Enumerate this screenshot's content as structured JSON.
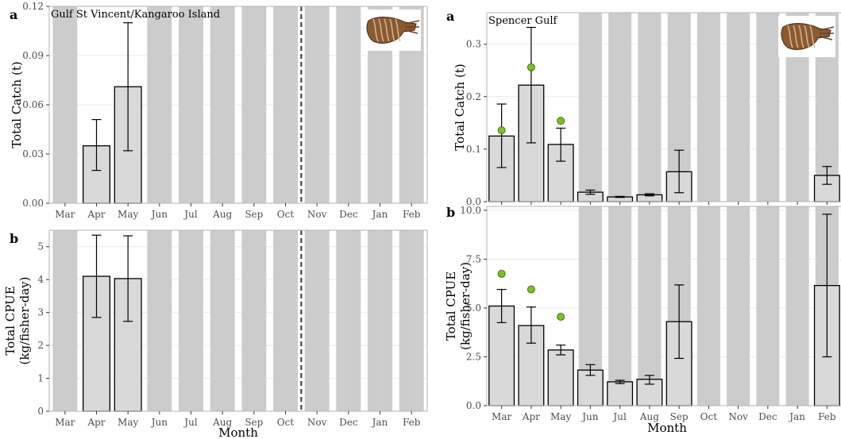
{
  "figure": {
    "xlabel": "Month",
    "months": [
      "Mar",
      "Apr",
      "May",
      "Jun",
      "Jul",
      "Aug",
      "Sep",
      "Oct",
      "Nov",
      "Dec",
      "Jan",
      "Feb"
    ]
  },
  "colors": {
    "panel_bg": "#ffffff",
    "closure_band": "#cccccc",
    "bar_fill": "#d9d9d9",
    "bar_stroke": "#000000",
    "point": "#7cc21f",
    "axis_text": "#4d4d4d",
    "grid": "#ebebeb",
    "separator": "#333333"
  },
  "chart_data": [
    {
      "id": "gsv-catch",
      "type": "bar",
      "panel_tag": "a",
      "title": "Gulf St Vincent/Kangaroo Island",
      "ylabel": [
        "Total Catch (t)"
      ],
      "ylim": [
        0,
        0.12
      ],
      "yticks": [
        0,
        0.03,
        0.06,
        0.09,
        0.12
      ],
      "ytick_labels": [
        "0.00",
        "0.03",
        "0.06",
        "0.09",
        "0.12"
      ],
      "closed_months": [
        "Mar",
        "Jun",
        "Jul",
        "Aug",
        "Sep",
        "Oct",
        "Nov",
        "Dec",
        "Jan",
        "Feb"
      ],
      "separator_after": "Oct",
      "bars": [
        {
          "month": "Apr",
          "value": 0.035,
          "low": 0.02,
          "high": 0.051
        },
        {
          "month": "May",
          "value": 0.071,
          "low": 0.032,
          "high": 0.11
        }
      ],
      "points": [],
      "image_icon": "cuttlefish-icon"
    },
    {
      "id": "gsv-cpue",
      "type": "bar",
      "panel_tag": "b",
      "ylabel": [
        "Total CPUE",
        "(kg/fisher-day)"
      ],
      "ylim": [
        0,
        5.5
      ],
      "yticks": [
        0,
        1,
        2,
        3,
        4,
        5
      ],
      "ytick_labels": [
        "0",
        "1",
        "2",
        "3",
        "4",
        "5"
      ],
      "closed_months": [
        "Mar",
        "Jun",
        "Jul",
        "Aug",
        "Sep",
        "Oct",
        "Nov",
        "Dec",
        "Jan",
        "Feb"
      ],
      "separator_after": "Oct",
      "bars": [
        {
          "month": "Apr",
          "value": 4.1,
          "low": 2.85,
          "high": 5.35
        },
        {
          "month": "May",
          "value": 4.03,
          "low": 2.73,
          "high": 5.33
        }
      ],
      "points": []
    },
    {
      "id": "sg-catch",
      "type": "bar",
      "panel_tag": "a",
      "title": "Spencer Gulf",
      "ylabel": [
        "Total Catch (t)"
      ],
      "ylim": [
        0,
        0.36
      ],
      "yticks": [
        0,
        0.1,
        0.2,
        0.3
      ],
      "ytick_labels": [
        "0.0",
        "0.1",
        "0.2",
        "0.3"
      ],
      "closed_months": [
        "Jun",
        "Jul",
        "Aug",
        "Sep",
        "Oct",
        "Nov",
        "Dec",
        "Jan",
        "Feb"
      ],
      "bars": [
        {
          "month": "Mar",
          "value": 0.125,
          "low": 0.065,
          "high": 0.186
        },
        {
          "month": "Apr",
          "value": 0.222,
          "low": 0.112,
          "high": 0.332
        },
        {
          "month": "May",
          "value": 0.109,
          "low": 0.077,
          "high": 0.14
        },
        {
          "month": "Jun",
          "value": 0.018,
          "low": 0.014,
          "high": 0.022
        },
        {
          "month": "Jul",
          "value": 0.009,
          "low": 0.008,
          "high": 0.01
        },
        {
          "month": "Aug",
          "value": 0.013,
          "low": 0.011,
          "high": 0.015
        },
        {
          "month": "Sep",
          "value": 0.057,
          "low": 0.017,
          "high": 0.098
        },
        {
          "month": "Feb",
          "value": 0.05,
          "low": 0.033,
          "high": 0.067
        }
      ],
      "points": [
        {
          "month": "Mar",
          "value": 0.136
        },
        {
          "month": "Apr",
          "value": 0.256
        },
        {
          "month": "May",
          "value": 0.154
        }
      ],
      "image_icon": "cuttlefish-icon"
    },
    {
      "id": "sg-cpue",
      "type": "bar",
      "panel_tag": "b",
      "ylabel": [
        "Total CPUE",
        "(kg/fisher-day)"
      ],
      "ylim": [
        0,
        10.2
      ],
      "yticks": [
        0,
        2.5,
        5,
        7.5,
        10
      ],
      "ytick_labels": [
        "0.0",
        "2.5",
        "5.0",
        "7.5",
        "10.0"
      ],
      "closed_months": [
        "Jun",
        "Jul",
        "Aug",
        "Sep",
        "Oct",
        "Nov",
        "Dec",
        "Jan",
        "Feb"
      ],
      "bars": [
        {
          "month": "Mar",
          "value": 5.1,
          "low": 4.25,
          "high": 5.95
        },
        {
          "month": "Apr",
          "value": 4.1,
          "low": 3.2,
          "high": 5.05
        },
        {
          "month": "May",
          "value": 2.85,
          "low": 2.6,
          "high": 3.1
        },
        {
          "month": "Jun",
          "value": 1.82,
          "low": 1.55,
          "high": 2.1
        },
        {
          "month": "Jul",
          "value": 1.22,
          "low": 1.13,
          "high": 1.3
        },
        {
          "month": "Aug",
          "value": 1.35,
          "low": 1.1,
          "high": 1.55
        },
        {
          "month": "Sep",
          "value": 4.3,
          "low": 2.42,
          "high": 6.18
        },
        {
          "month": "Feb",
          "value": 6.15,
          "low": 2.5,
          "high": 9.8
        }
      ],
      "points": [
        {
          "month": "Mar",
          "value": 6.75
        },
        {
          "month": "Apr",
          "value": 5.95
        },
        {
          "month": "May",
          "value": 4.55
        }
      ]
    }
  ]
}
